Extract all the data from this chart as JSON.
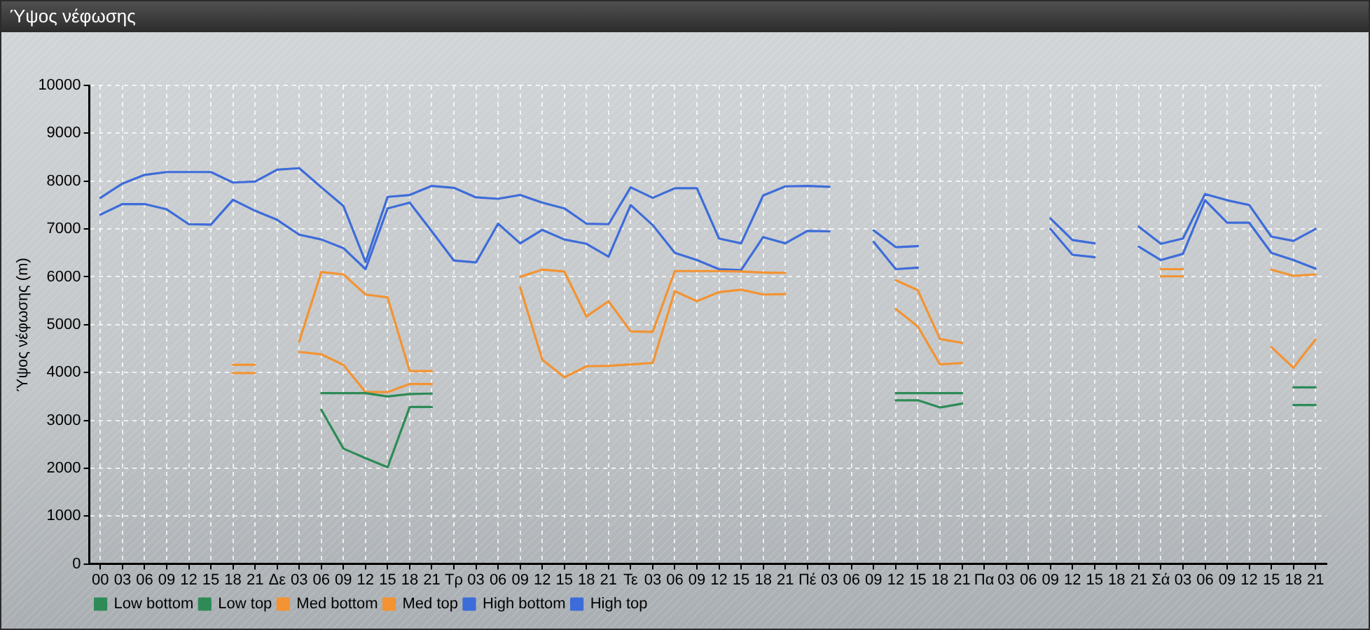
{
  "chart_data": {
    "type": "line",
    "title": "Ύψος νέφωσης",
    "ylabel": "Ύψος νέφωσης (m)",
    "categories": [
      "00",
      "03",
      "06",
      "09",
      "12",
      "15",
      "18",
      "21",
      "Δε",
      "03",
      "06",
      "09",
      "12",
      "15",
      "18",
      "21",
      "Τρ",
      "03",
      "06",
      "09",
      "12",
      "15",
      "18",
      "21",
      "Τε",
      "03",
      "06",
      "09",
      "12",
      "15",
      "18",
      "21",
      "Πέ",
      "03",
      "06",
      "09",
      "12",
      "15",
      "18",
      "21",
      "Πα",
      "03",
      "06",
      "09",
      "12",
      "15",
      "18",
      "21",
      "Σά",
      "03",
      "06",
      "09",
      "12",
      "15",
      "18",
      "21"
    ],
    "series": [
      {
        "name": "Low bottom",
        "color": "#2e8b57",
        "values": [
          null,
          null,
          null,
          null,
          null,
          null,
          null,
          null,
          null,
          null,
          3220,
          2410,
          2210,
          2020,
          3280,
          3280,
          null,
          null,
          null,
          null,
          null,
          null,
          null,
          null,
          null,
          null,
          null,
          null,
          null,
          null,
          null,
          null,
          null,
          null,
          null,
          null,
          3420,
          3420,
          3270,
          3350,
          null,
          null,
          null,
          null,
          null,
          null,
          null,
          null,
          null,
          null,
          null,
          null,
          null,
          null,
          3320,
          3320
        ]
      },
      {
        "name": "Low top",
        "color": "#2e8b57",
        "values": [
          null,
          null,
          null,
          null,
          null,
          null,
          null,
          null,
          null,
          null,
          3570,
          3570,
          3570,
          3500,
          3550,
          3560,
          null,
          null,
          null,
          null,
          null,
          null,
          null,
          null,
          null,
          null,
          null,
          null,
          null,
          null,
          null,
          null,
          null,
          null,
          null,
          null,
          3570,
          3570,
          3570,
          3570,
          null,
          null,
          null,
          null,
          null,
          null,
          null,
          null,
          null,
          null,
          null,
          null,
          null,
          null,
          3690,
          3690
        ]
      },
      {
        "name": "Med bottom",
        "color": "#f39332",
        "values": [
          null,
          null,
          null,
          null,
          null,
          null,
          3990,
          3990,
          null,
          4430,
          4380,
          4160,
          3590,
          3590,
          3760,
          3760,
          null,
          null,
          null,
          5780,
          4270,
          3900,
          4130,
          4140,
          4170,
          4200,
          5700,
          5490,
          5680,
          5730,
          5630,
          5640,
          null,
          null,
          null,
          null,
          5330,
          4960,
          4170,
          4200,
          null,
          null,
          null,
          null,
          null,
          null,
          null,
          null,
          6010,
          6010,
          null,
          null,
          null,
          4530,
          4100,
          4690
        ]
      },
      {
        "name": "Med top",
        "color": "#f39332",
        "values": [
          null,
          null,
          null,
          null,
          null,
          null,
          4160,
          4160,
          null,
          4650,
          6100,
          6050,
          5630,
          5570,
          4030,
          4030,
          null,
          null,
          null,
          6000,
          6150,
          6110,
          5170,
          5490,
          4860,
          4850,
          6120,
          6120,
          6120,
          6110,
          6090,
          6080,
          null,
          null,
          null,
          null,
          5930,
          5720,
          4700,
          4620,
          null,
          null,
          null,
          null,
          null,
          null,
          null,
          null,
          6160,
          6160,
          null,
          null,
          null,
          6150,
          6020,
          6050
        ]
      },
      {
        "name": "High bottom",
        "color": "#3d6cd9",
        "values": [
          7300,
          7520,
          7520,
          7410,
          7100,
          7090,
          7610,
          7380,
          7190,
          6880,
          6780,
          6600,
          6160,
          7430,
          7550,
          6950,
          6340,
          6300,
          7110,
          6700,
          6980,
          6780,
          6690,
          6420,
          7500,
          7080,
          6500,
          6350,
          6160,
          6140,
          6830,
          6700,
          6960,
          6950,
          null,
          6730,
          6160,
          6190,
          null,
          null,
          null,
          null,
          null,
          7000,
          6460,
          6410,
          null,
          6630,
          6350,
          6480,
          7600,
          7130,
          7130,
          6500,
          6350,
          6170
        ]
      },
      {
        "name": "High top",
        "color": "#3d6cd9",
        "values": [
          7650,
          7950,
          8130,
          8190,
          8190,
          8190,
          7970,
          7990,
          8240,
          8270,
          7870,
          7480,
          6310,
          7670,
          7710,
          7900,
          7860,
          7660,
          7630,
          7710,
          7550,
          7430,
          7110,
          7100,
          7870,
          7650,
          7850,
          7850,
          6800,
          6700,
          7700,
          7890,
          7900,
          7880,
          null,
          6970,
          6620,
          6640,
          null,
          null,
          null,
          null,
          null,
          7220,
          6770,
          6700,
          null,
          7050,
          6690,
          6800,
          7730,
          7600,
          7500,
          6840,
          6750,
          7000
        ]
      }
    ],
    "ylim": [
      0,
      10000
    ],
    "yticks": [
      0,
      1000,
      2000,
      3000,
      4000,
      5000,
      6000,
      7000,
      8000,
      9000,
      10000
    ],
    "grid": true,
    "legend": "bottom left",
    "marker": "none",
    "line_style": "solid"
  }
}
